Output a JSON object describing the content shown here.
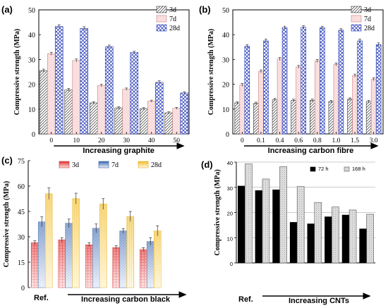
{
  "figure": {
    "panels": [
      "a",
      "b",
      "c",
      "d"
    ]
  },
  "chart_data": [
    {
      "id": "a",
      "panel_label": "(a)",
      "type": "bar",
      "ylabel": "Compressive strength (MPa)",
      "xlabel": "Increasing graphite",
      "ylim": [
        0,
        50
      ],
      "yticks": [
        0,
        10,
        20,
        30,
        40,
        50
      ],
      "categories": [
        "0",
        "10",
        "20",
        "30",
        "40",
        "50"
      ],
      "legend_position": "top-right",
      "series": [
        {
          "name": "3d",
          "values": [
            25.5,
            17.7,
            12.5,
            10.5,
            10.2,
            8.5
          ],
          "errors": [
            0.6,
            0.6,
            0.5,
            0.5,
            0.4,
            0.4
          ],
          "color": "#ffffff",
          "stroke": "#333333",
          "pattern": "hatch"
        },
        {
          "name": "7d",
          "values": [
            32.3,
            29.6,
            19.5,
            18,
            13.2,
            10.3
          ],
          "errors": [
            0.6,
            0.6,
            0.5,
            0.5,
            0.4,
            0.4
          ],
          "color": "#fbe3e3",
          "stroke": "#d07f7f",
          "pattern": "light"
        },
        {
          "name": "28d",
          "values": [
            43.3,
            42.5,
            35.2,
            32.8,
            20.8,
            16.5
          ],
          "errors": [
            0.7,
            0.7,
            0.6,
            0.5,
            0.6,
            0.5
          ],
          "color": "#ffffff",
          "stroke": "#2a3fb8",
          "pattern": "cross"
        }
      ]
    },
    {
      "id": "b",
      "panel_label": "(b)",
      "type": "bar",
      "ylabel": "Compressive strength (MPa)",
      "xlabel": "Increasing carbon fibre",
      "ylim": [
        0,
        50
      ],
      "yticks": [
        0,
        10,
        20,
        30,
        40,
        50
      ],
      "categories": [
        "0",
        "0.1",
        "0.4",
        "0.6",
        "0.8",
        "1.0",
        "1.5",
        "3.0"
      ],
      "legend_position": "top-right",
      "series": [
        {
          "name": "3d",
          "values": [
            12.5,
            12.3,
            13.8,
            13.5,
            13.5,
            13,
            14,
            13
          ],
          "errors": [
            0.5,
            0.5,
            0.5,
            0.5,
            0.5,
            0.5,
            0.5,
            0.5
          ],
          "color": "#ffffff",
          "stroke": "#333333",
          "pattern": "hatch"
        },
        {
          "name": "7d",
          "values": [
            19.7,
            25.2,
            30.2,
            27,
            29.4,
            28,
            23.5,
            22
          ],
          "errors": [
            0.6,
            0.6,
            0.6,
            0.6,
            0.6,
            0.6,
            0.6,
            0.6
          ],
          "color": "#fbe3e3",
          "stroke": "#d07f7f",
          "pattern": "light"
        },
        {
          "name": "28d",
          "values": [
            35.3,
            37.5,
            42.8,
            43,
            42.8,
            41.8,
            37.5,
            36
          ],
          "errors": [
            0.7,
            0.7,
            0.6,
            0.6,
            0.6,
            0.6,
            0.7,
            0.7
          ],
          "color": "#ffffff",
          "stroke": "#2a3fb8",
          "pattern": "cross"
        }
      ]
    },
    {
      "id": "c",
      "panel_label": "(c)",
      "type": "bar",
      "ylabel": "Compressive strength (MPa)",
      "xlabel": "Increasing carbon black",
      "ref_label": "Ref.",
      "ylim": [
        0,
        75
      ],
      "yticks": [
        0,
        15,
        30,
        45,
        60,
        75
      ],
      "categories": [
        "Ref.",
        "",
        "",
        "",
        "",
        ""
      ],
      "legend_position": "top",
      "series": [
        {
          "name": "3d",
          "values": [
            26.5,
            28.2,
            25.3,
            23.7,
            22.5,
            0
          ],
          "errors": [
            1.2,
            1.3,
            1.2,
            1.0,
            1.1,
            0
          ],
          "color": "#e64141",
          "stroke": "#d23030",
          "pattern": "grid"
        },
        {
          "name": "7d",
          "values": [
            38.8,
            38,
            35,
            33.5,
            27.2,
            0
          ],
          "errors": [
            3.0,
            2.5,
            2.6,
            1.4,
            2.3,
            0
          ],
          "color": "#3f6fb8",
          "stroke": "#2e5a9e",
          "pattern": "diag"
        },
        {
          "name": "28d",
          "values": [
            55.5,
            52.6,
            49.4,
            42,
            33.5,
            0
          ],
          "errors": [
            3.4,
            3.2,
            3.2,
            3.0,
            3.0,
            0
          ],
          "color": "#f3c232",
          "stroke": "#e5b020",
          "pattern": "vlines"
        }
      ]
    },
    {
      "id": "d",
      "panel_label": "(d)",
      "type": "bar",
      "ylabel": "Compressive strength (MPa)",
      "xlabel": "Increasing CNTs",
      "ref_label": "Ref.",
      "ylim": [
        0,
        40
      ],
      "yticks": [
        0,
        10,
        20,
        30,
        40
      ],
      "categories": [
        "Ref.",
        "",
        "",
        "",
        "",
        "",
        "",
        ""
      ],
      "legend_position": "top-right",
      "grid": true,
      "series": [
        {
          "name": "72 h",
          "values": [
            30.5,
            28.7,
            29,
            16.1,
            15.5,
            18.3,
            19,
            13.5
          ],
          "color": "#000000",
          "stroke": "#000000",
          "pattern": "solid"
        },
        {
          "name": "168 h",
          "values": [
            39.3,
            33.3,
            38.2,
            30.3,
            24,
            22.2,
            21,
            19.3
          ],
          "color": "#d9d9d9",
          "stroke": "#555555",
          "pattern": "dots"
        }
      ]
    }
  ]
}
